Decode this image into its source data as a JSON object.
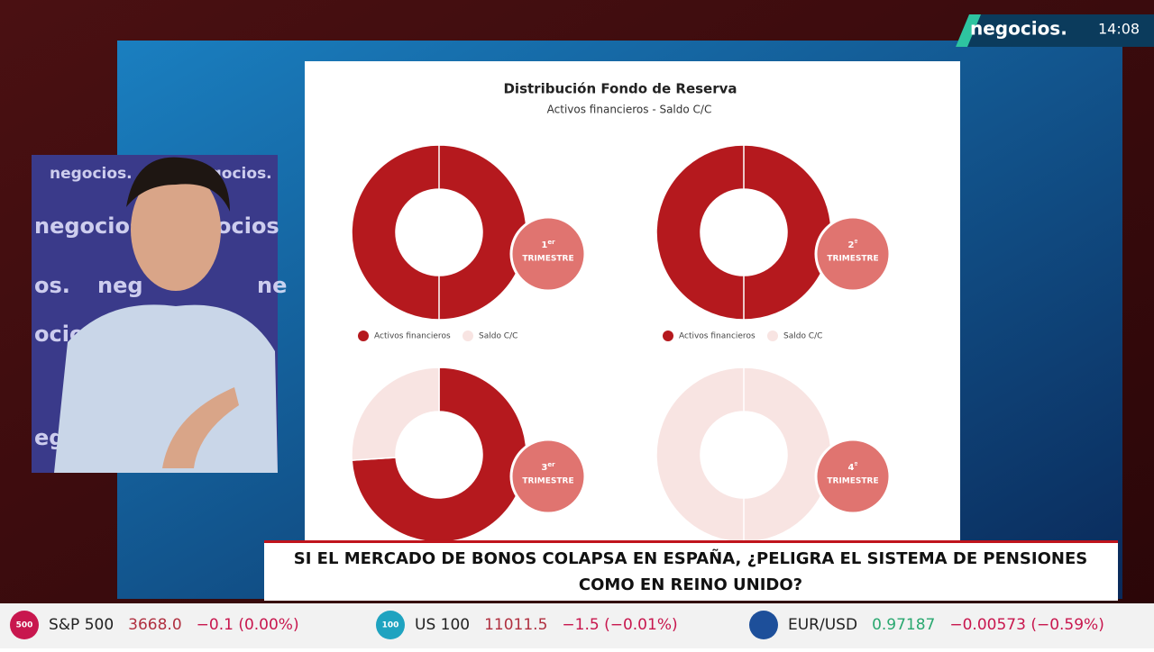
{
  "channel": {
    "logo": "negocios.",
    "time": "14:08"
  },
  "wall_text": [
    "negocios.",
    "negocios.",
    "negocios",
    "ocios",
    "os.",
    "neg",
    "ocios",
    "ne",
    "ocios",
    "eg"
  ],
  "chart_panel": {
    "title": "Distribución Fondo de Reserva",
    "subtitle": "Activos financieros - Saldo C/C"
  },
  "chart_data": [
    {
      "type": "pie",
      "donut": true,
      "legend": true,
      "label_number": "1",
      "label_suffix": "er",
      "label_text": "TRIMESTRE",
      "categories": [
        "Activos financieros",
        "Saldo C/C"
      ],
      "colors": [
        "#b5191e",
        "#f8e4e2"
      ],
      "values": [
        100,
        0
      ]
    },
    {
      "type": "pie",
      "donut": true,
      "legend": true,
      "label_number": "2",
      "label_suffix": "º",
      "label_text": "TRIMESTRE",
      "categories": [
        "Activos financieros",
        "Saldo C/C"
      ],
      "colors": [
        "#b5191e",
        "#f8e4e2"
      ],
      "values": [
        100,
        0
      ]
    },
    {
      "type": "pie",
      "donut": true,
      "legend": false,
      "label_number": "3",
      "label_suffix": "er",
      "label_text": "TRIMESTRE",
      "categories": [
        "Activos financieros",
        "Saldo C/C"
      ],
      "colors": [
        "#b5191e",
        "#f8e4e2"
      ],
      "values": [
        74,
        26
      ]
    },
    {
      "type": "pie",
      "donut": true,
      "legend": false,
      "label_number": "4",
      "label_suffix": "º",
      "label_text": "TRIMESTRE",
      "categories": [
        "Activos financieros",
        "Saldo C/C"
      ],
      "colors": [
        "#b5191e",
        "#f8e4e2"
      ],
      "values": [
        0,
        100
      ]
    }
  ],
  "headline": {
    "line1": "SI EL MERCADO DE BONOS COLAPSA EN ESPAÑA, ¿PELIGRA EL SISTEMA DE PENSIONES",
    "line2": "COMO EN REINO UNIDO?"
  },
  "ticker": [
    {
      "icon": "500",
      "name": "S&P 500",
      "price": "3668.0",
      "change": "−0.1 (0.00%)"
    },
    {
      "icon": "100",
      "name": "US 100",
      "price": "11011.5",
      "change": "−1.5 (−0.01%)"
    },
    {
      "icon": "",
      "name": "EUR/USD",
      "price": "0.97187",
      "change": "−0.00573 (−0.59%)"
    }
  ]
}
